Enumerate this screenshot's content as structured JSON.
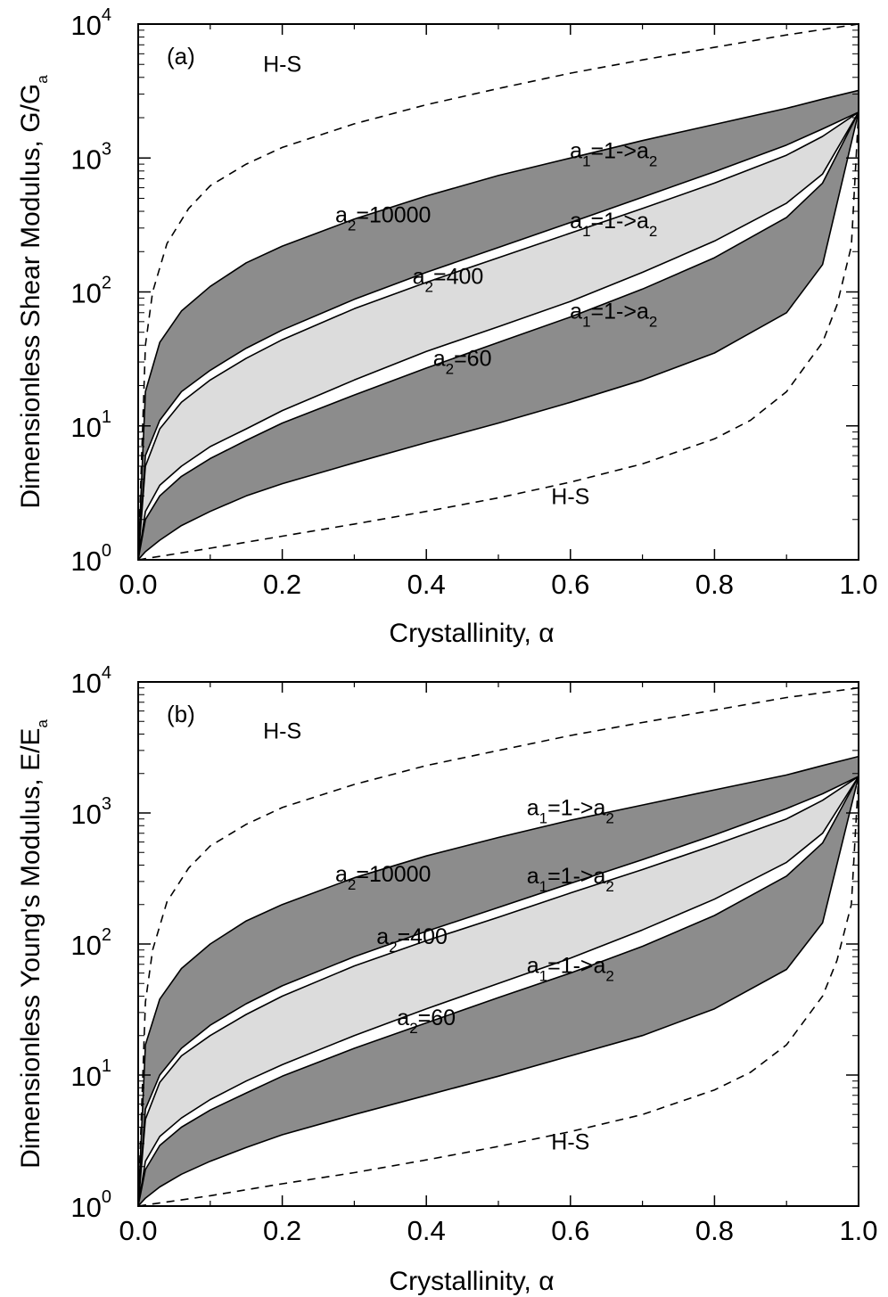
{
  "chart_data": [
    {
      "type": "area",
      "panel_label": "(a)",
      "xlabel": "Crystallinity, α",
      "ylabel_main": "Dimensionless Shear Modulus, G/G",
      "ylabel_sub": "a",
      "xlim": [
        0,
        1
      ],
      "ylim": [
        1,
        10000
      ],
      "yscale": "log",
      "x_ticks": [
        "0.0",
        "0.2",
        "0.4",
        "0.6",
        "0.8",
        "1.0"
      ],
      "y_ticks": [
        {
          "base": "10",
          "exp": "0"
        },
        {
          "base": "10",
          "exp": "1"
        },
        {
          "base": "10",
          "exp": "2"
        },
        {
          "base": "10",
          "exp": "3"
        },
        {
          "base": "10",
          "exp": "4"
        }
      ],
      "bands": [
        {
          "fill": "#8c8c8c",
          "upper": {
            "x": [
              0,
              0.01,
              0.03,
              0.06,
              0.1,
              0.15,
              0.2,
              0.3,
              0.4,
              0.5,
              0.6,
              0.7,
              0.8,
              0.9,
              0.95,
              1.0
            ],
            "y": [
              1,
              18,
              42,
              72,
              110,
              165,
              220,
              350,
              520,
              740,
              1000,
              1350,
              1780,
              2350,
              2750,
              3200
            ]
          },
          "lower": {
            "x": [
              0,
              0.01,
              0.03,
              0.06,
              0.1,
              0.15,
              0.2,
              0.3,
              0.4,
              0.5,
              0.6,
              0.7,
              0.8,
              0.9,
              0.95,
              1.0
            ],
            "y": [
              1,
              6,
              11,
              18,
              26,
              38,
              52,
              88,
              140,
              215,
              330,
              510,
              790,
              1250,
              1650,
              2200
            ]
          }
        },
        {
          "fill": "#dcdcdc",
          "upper": {
            "x": [
              0,
              0.01,
              0.03,
              0.06,
              0.1,
              0.15,
              0.2,
              0.3,
              0.4,
              0.5,
              0.6,
              0.7,
              0.8,
              0.9,
              0.95,
              1.0
            ],
            "y": [
              1,
              5,
              9.5,
              15,
              22,
              32,
              44,
              75,
              118,
              180,
              275,
              420,
              650,
              1050,
              1450,
              2200
            ]
          },
          "lower": {
            "x": [
              0,
              0.01,
              0.03,
              0.06,
              0.1,
              0.15,
              0.2,
              0.3,
              0.4,
              0.5,
              0.6,
              0.7,
              0.8,
              0.9,
              0.95,
              1.0
            ],
            "y": [
              1,
              2.3,
              3.6,
              5,
              7,
              9.5,
              13,
              22,
              36,
              55,
              85,
              140,
              240,
              460,
              760,
              2200
            ]
          }
        },
        {
          "fill": "#8c8c8c",
          "upper": {
            "x": [
              0,
              0.01,
              0.03,
              0.06,
              0.1,
              0.15,
              0.2,
              0.3,
              0.4,
              0.5,
              0.6,
              0.7,
              0.8,
              0.9,
              0.95,
              1.0
            ],
            "y": [
              1,
              2,
              3,
              4.2,
              5.7,
              7.8,
              10.5,
              17,
              27,
              42,
              65,
              105,
              180,
              360,
              650,
              2200
            ]
          },
          "lower": {
            "x": [
              0,
              0.01,
              0.03,
              0.06,
              0.1,
              0.15,
              0.2,
              0.3,
              0.4,
              0.5,
              0.6,
              0.7,
              0.8,
              0.9,
              0.95,
              1.0
            ],
            "y": [
              1,
              1.15,
              1.4,
              1.8,
              2.3,
              3,
              3.7,
              5.3,
              7.5,
              10.5,
              15,
              22,
              35,
              70,
              160,
              2200
            ]
          }
        }
      ],
      "hs_bounds": [
        {
          "x": [
            0,
            0.01,
            0.02,
            0.04,
            0.07,
            0.1,
            0.15,
            0.2,
            0.3,
            0.4,
            0.5,
            0.6,
            0.7,
            0.8,
            0.9,
            1.0
          ],
          "y": [
            1,
            40,
            100,
            230,
            420,
            620,
            900,
            1200,
            1800,
            2500,
            3300,
            4300,
            5400,
            6700,
            8300,
            10000
          ]
        },
        {
          "x": [
            0,
            0.1,
            0.2,
            0.3,
            0.4,
            0.5,
            0.6,
            0.7,
            0.8,
            0.85,
            0.9,
            0.95,
            0.97,
            0.99,
            1.0
          ],
          "y": [
            1,
            1.22,
            1.5,
            1.85,
            2.3,
            2.9,
            3.8,
            5.2,
            8,
            11,
            18,
            42,
            80,
            220,
            2200
          ]
        }
      ],
      "annotations": [
        {
          "main": "H-S",
          "x": 0.2,
          "y": 4400
        },
        {
          "main": "H-S",
          "x": 0.6,
          "y": 2.6
        },
        {
          "main": "a",
          "sub": "1",
          "rest": "=1->a",
          "sub2": "2",
          "x": 0.66,
          "y": 1000
        },
        {
          "main": "a",
          "sub": "2",
          "rest": "=10000",
          "x": 0.34,
          "y": 330
        },
        {
          "main": "a",
          "sub": "1",
          "rest": "=1->a",
          "sub2": "2",
          "x": 0.66,
          "y": 300
        },
        {
          "main": "a",
          "sub": "2",
          "rest": "=400",
          "x": 0.43,
          "y": 115
        },
        {
          "main": "a",
          "sub": "1",
          "rest": "=1->a",
          "sub2": "2",
          "x": 0.66,
          "y": 63
        },
        {
          "main": "a",
          "sub": "2",
          "rest": "=60",
          "x": 0.45,
          "y": 28
        }
      ]
    },
    {
      "type": "area",
      "panel_label": "(b)",
      "xlabel": "Crystallinity, α",
      "ylabel_main": "Dimensionless Young's Modulus, E/E",
      "ylabel_sub": "a",
      "xlim": [
        0,
        1
      ],
      "ylim": [
        1,
        10000
      ],
      "yscale": "log",
      "x_ticks": [
        "0.0",
        "0.2",
        "0.4",
        "0.6",
        "0.8",
        "1.0"
      ],
      "y_ticks": [
        {
          "base": "10",
          "exp": "0"
        },
        {
          "base": "10",
          "exp": "1"
        },
        {
          "base": "10",
          "exp": "2"
        },
        {
          "base": "10",
          "exp": "3"
        },
        {
          "base": "10",
          "exp": "4"
        }
      ],
      "bands": [
        {
          "fill": "#8c8c8c",
          "upper": {
            "x": [
              0,
              0.01,
              0.03,
              0.06,
              0.1,
              0.15,
              0.2,
              0.3,
              0.4,
              0.5,
              0.6,
              0.7,
              0.8,
              0.9,
              0.95,
              1.0
            ],
            "y": [
              1,
              17,
              38,
              65,
              100,
              150,
              200,
              320,
              470,
              650,
              880,
              1150,
              1500,
              1950,
              2300,
              2700
            ]
          },
          "lower": {
            "x": [
              0,
              0.01,
              0.03,
              0.06,
              0.1,
              0.15,
              0.2,
              0.3,
              0.4,
              0.5,
              0.6,
              0.7,
              0.8,
              0.9,
              0.95,
              1.0
            ],
            "y": [
              1,
              5.5,
              10,
              16,
              24,
              35,
              48,
              80,
              125,
              190,
              290,
              440,
              680,
              1080,
              1400,
              1900
            ]
          }
        },
        {
          "fill": "#dcdcdc",
          "upper": {
            "x": [
              0,
              0.01,
              0.03,
              0.06,
              0.1,
              0.15,
              0.2,
              0.3,
              0.4,
              0.5,
              0.6,
              0.7,
              0.8,
              0.9,
              0.95,
              1.0
            ],
            "y": [
              1,
              4.6,
              8.8,
              14,
              20,
              29,
              40,
              68,
              106,
              160,
              245,
              370,
              570,
              900,
              1250,
              1900
            ]
          },
          "lower": {
            "x": [
              0,
              0.01,
              0.03,
              0.06,
              0.1,
              0.15,
              0.2,
              0.3,
              0.4,
              0.5,
              0.6,
              0.7,
              0.8,
              0.9,
              0.95,
              1.0
            ],
            "y": [
              1,
              2.2,
              3.4,
              4.7,
              6.5,
              9,
              12,
              20,
              32,
              50,
              78,
              128,
              220,
              420,
              700,
              1900
            ]
          }
        },
        {
          "fill": "#8c8c8c",
          "upper": {
            "x": [
              0,
              0.01,
              0.03,
              0.06,
              0.1,
              0.15,
              0.2,
              0.3,
              0.4,
              0.5,
              0.6,
              0.7,
              0.8,
              0.9,
              0.95,
              1.0
            ],
            "y": [
              1,
              1.9,
              2.9,
              4,
              5.4,
              7.3,
              9.8,
              16,
              25,
              39,
              60,
              96,
              165,
              330,
              590,
              1900
            ]
          },
          "lower": {
            "x": [
              0,
              0.01,
              0.03,
              0.06,
              0.1,
              0.15,
              0.2,
              0.3,
              0.4,
              0.5,
              0.6,
              0.7,
              0.8,
              0.9,
              0.95,
              1.0
            ],
            "y": [
              1,
              1.15,
              1.4,
              1.75,
              2.2,
              2.8,
              3.5,
              5,
              7,
              9.8,
              14,
              20,
              32,
              64,
              145,
              1900
            ]
          }
        }
      ],
      "hs_bounds": [
        {
          "x": [
            0,
            0.01,
            0.02,
            0.04,
            0.07,
            0.1,
            0.15,
            0.2,
            0.3,
            0.4,
            0.5,
            0.6,
            0.7,
            0.8,
            0.9,
            1.0
          ],
          "y": [
            1,
            36,
            90,
            210,
            380,
            560,
            820,
            1100,
            1650,
            2300,
            3000,
            3900,
            4900,
            6100,
            7600,
            9000
          ]
        },
        {
          "x": [
            0,
            0.1,
            0.2,
            0.3,
            0.4,
            0.5,
            0.6,
            0.7,
            0.8,
            0.85,
            0.9,
            0.95,
            0.97,
            0.99,
            1.0
          ],
          "y": [
            1,
            1.2,
            1.48,
            1.8,
            2.25,
            2.85,
            3.7,
            5,
            7.7,
            10.5,
            17,
            40,
            75,
            200,
            1900
          ]
        }
      ],
      "annotations": [
        {
          "main": "H-S",
          "x": 0.2,
          "y": 3700
        },
        {
          "main": "H-S",
          "x": 0.6,
          "y": 2.7
        },
        {
          "main": "a",
          "sub": "1",
          "rest": "=1->a",
          "sub2": "2",
          "x": 0.6,
          "y": 960
        },
        {
          "main": "a",
          "sub": "2",
          "rest": "=10000",
          "x": 0.34,
          "y": 300
        },
        {
          "main": "a",
          "sub": "1",
          "rest": "=1->a",
          "sub2": "2",
          "x": 0.6,
          "y": 290
        },
        {
          "main": "a",
          "sub": "2",
          "rest": "=400",
          "x": 0.38,
          "y": 100
        },
        {
          "main": "a",
          "sub": "1",
          "rest": "=1->a",
          "sub2": "2",
          "x": 0.6,
          "y": 60
        },
        {
          "main": "a",
          "sub": "2",
          "rest": "=60",
          "x": 0.4,
          "y": 24
        }
      ]
    }
  ]
}
